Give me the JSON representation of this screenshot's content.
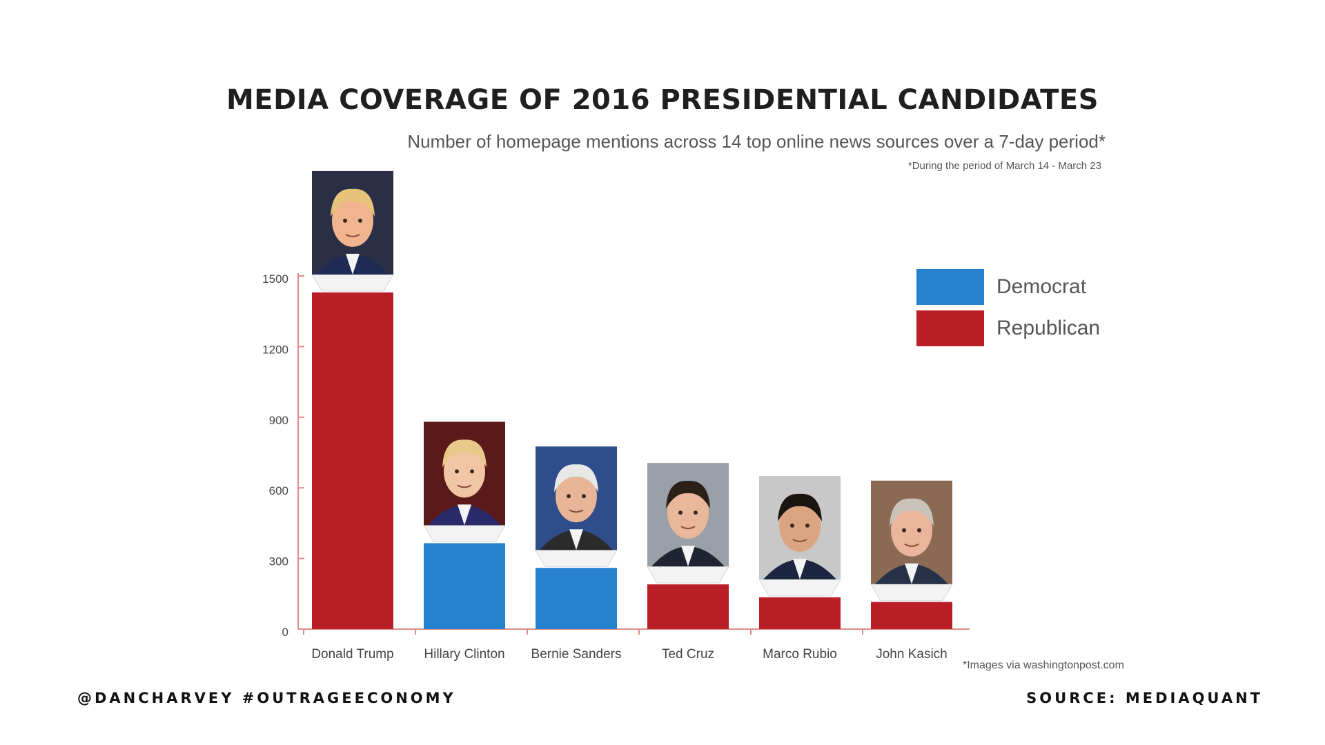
{
  "header": {
    "title": "MEDIA COVERAGE OF 2016 PRESIDENTIAL CANDIDATES",
    "subtitle": "Number of homepage mentions across 14 top online news sources over a 7-day period*",
    "note": "*During the period of March 14 - March 23"
  },
  "legend": {
    "items": [
      {
        "label": "Democrat",
        "color": "#2581cc"
      },
      {
        "label": "Republican",
        "color": "#b81f26"
      }
    ]
  },
  "footer": {
    "left": "@DANCHARVEY #OUTRAGEECONOMY",
    "right": "SOURCE: MEDIAQUANT",
    "credit": "*Images via washingtonpost.com"
  },
  "colors": {
    "democrat": "#2581cc",
    "republican": "#b81f26",
    "axis": "#e08a8a",
    "photo_bg": "#d9d9d9"
  },
  "chart_data": {
    "type": "bar",
    "categories": [
      "Donald Trump",
      "Hillary Clinton",
      "Bernie Sanders",
      "Ted Cruz",
      "Marco Rubio",
      "John Kasich"
    ],
    "values": [
      1430,
      365,
      260,
      190,
      135,
      115
    ],
    "party": [
      "Republican",
      "Democrat",
      "Democrat",
      "Republican",
      "Republican",
      "Republican"
    ],
    "icons": [
      "trump-photo",
      "clinton-photo",
      "sanders-photo",
      "cruz-photo",
      "rubio-photo",
      "kasich-photo"
    ],
    "title": "MEDIA COVERAGE OF 2016 PRESIDENTIAL CANDIDATES",
    "xlabel": "",
    "ylabel": "",
    "yticks": [
      0,
      300,
      600,
      900,
      1200,
      1500
    ],
    "ylim": [
      0,
      1500
    ],
    "grid": false,
    "legend_position": "top-right"
  }
}
